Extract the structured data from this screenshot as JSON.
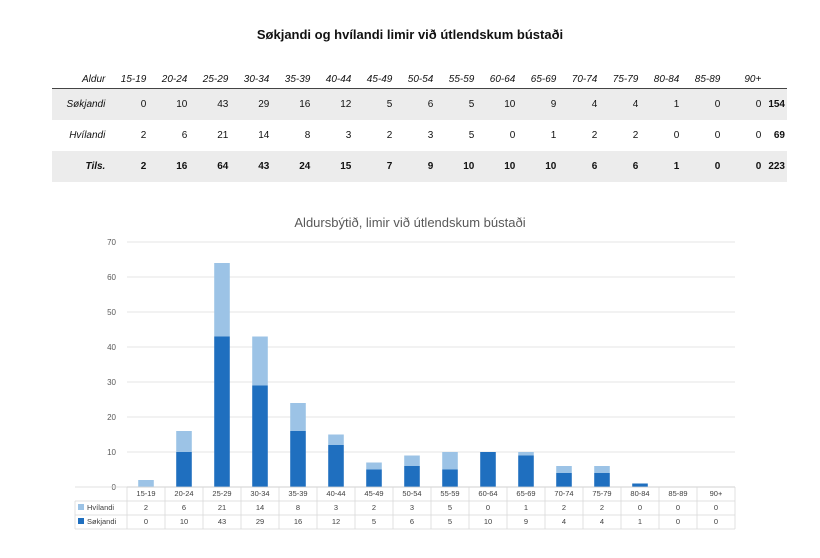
{
  "page_title": "Søkjandi og hvílandi limir við útlendskum bústaði",
  "table": {
    "header_label": "Aldur",
    "age_groups": [
      "15-19",
      "20-24",
      "25-29",
      "30-34",
      "35-39",
      "40-44",
      "45-49",
      "50-54",
      "55-59",
      "60-64",
      "65-69",
      "70-74",
      "75-79",
      "80-84",
      "85-89",
      "90+"
    ],
    "rows": [
      {
        "label": "Søkjandi",
        "values": [
          "0",
          "10",
          "43",
          "29",
          "16",
          "12",
          "5",
          "6",
          "5",
          "10",
          "9",
          "4",
          "4",
          "1",
          "0",
          "0"
        ],
        "total": "154"
      },
      {
        "label": "Hvílandi",
        "values": [
          "2",
          "6",
          "21",
          "14",
          "8",
          "3",
          "2",
          "3",
          "5",
          "0",
          "1",
          "2",
          "2",
          "0",
          "0",
          "0"
        ],
        "total": "69"
      },
      {
        "label": "Tils.",
        "values": [
          "2",
          "16",
          "64",
          "43",
          "24",
          "15",
          "7",
          "9",
          "10",
          "10",
          "10",
          "6",
          "6",
          "1",
          "0",
          "0"
        ],
        "total": "223"
      }
    ]
  },
  "chart_data": {
    "type": "bar",
    "stacked": true,
    "title": "Aldursbýtið, limir við útlendskum bústaði",
    "categories": [
      "15-19",
      "20-24",
      "25-29",
      "30-34",
      "35-39",
      "40-44",
      "45-49",
      "50-54",
      "55-59",
      "60-64",
      "65-69",
      "70-74",
      "75-79",
      "80-84",
      "85-89",
      "90+"
    ],
    "series": [
      {
        "name": "Søkjandi",
        "values": [
          0,
          10,
          43,
          29,
          16,
          12,
          5,
          6,
          5,
          10,
          9,
          4,
          4,
          1,
          0,
          0
        ],
        "color": "#1f6fbf"
      },
      {
        "name": "Hvílandi",
        "values": [
          2,
          6,
          21,
          14,
          8,
          3,
          2,
          3,
          5,
          0,
          1,
          2,
          2,
          0,
          0,
          0
        ],
        "color": "#9cc3e6"
      }
    ],
    "ylim": [
      0,
      70
    ],
    "yticks": [
      0,
      10,
      20,
      30,
      40,
      50,
      60,
      70
    ],
    "grid": true,
    "legend": "data-table-below",
    "xlabel": "",
    "ylabel": ""
  }
}
